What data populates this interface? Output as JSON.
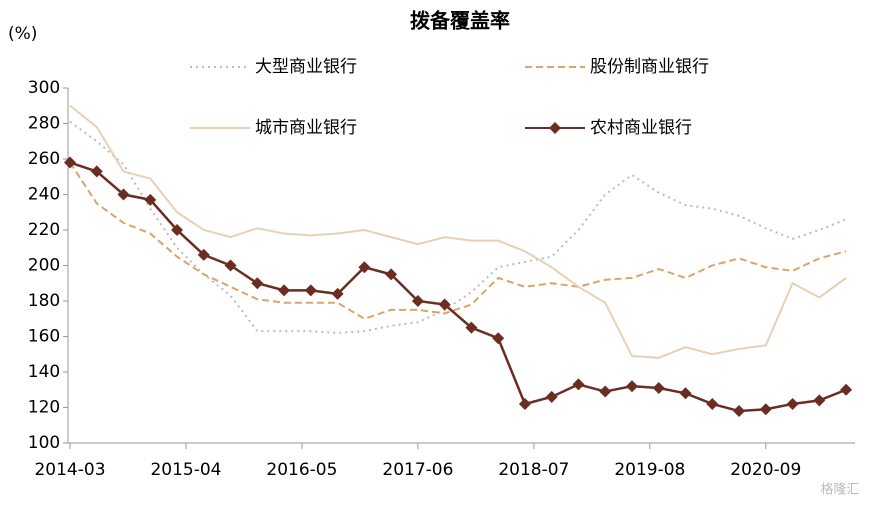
{
  "chart_data": {
    "type": "line",
    "title": "拨备覆盖率",
    "ylabel": "(%)",
    "watermark": "格隆汇",
    "x": [
      "2014-03",
      "2014-06",
      "2014-09",
      "2014-12",
      "2015-03",
      "2015-06",
      "2015-09",
      "2015-12",
      "2016-03",
      "2016-06",
      "2016-09",
      "2016-12",
      "2017-03",
      "2017-06",
      "2017-09",
      "2017-12",
      "2018-03",
      "2018-06",
      "2018-09",
      "2018-12",
      "2019-03",
      "2019-06",
      "2019-09",
      "2019-12",
      "2020-03",
      "2020-06",
      "2020-09",
      "2020-12",
      "2021-03",
      "2021-06"
    ],
    "xlim": [
      "2014-03",
      "2021-07"
    ],
    "xticks": [
      "2014-03",
      "2015-04",
      "2016-05",
      "2017-06",
      "2018-07",
      "2019-08",
      "2020-09"
    ],
    "ylim": [
      100,
      300
    ],
    "yticks": [
      100,
      120,
      140,
      160,
      180,
      200,
      220,
      240,
      260,
      280,
      300
    ],
    "grid": false,
    "series": [
      {
        "name": "大型商业银行",
        "color": "#b9b9c9",
        "dash": "dotted",
        "values": [
          281,
          270,
          257,
          232,
          210,
          195,
          183,
          163,
          163,
          163,
          162,
          163,
          166,
          168,
          175,
          185,
          199,
          202,
          205,
          220,
          240,
          251,
          241,
          234,
          232,
          228,
          221,
          215,
          220,
          226
        ]
      },
      {
        "name": "股份制商业银行",
        "color": "#dba468",
        "dash": "dashed",
        "values": [
          258,
          235,
          224,
          218,
          205,
          195,
          188,
          181,
          179,
          179,
          179,
          170,
          175,
          175,
          173,
          178,
          193,
          188,
          190,
          188,
          192,
          193,
          198,
          193,
          200,
          204,
          199,
          197,
          204,
          208
        ]
      },
      {
        "name": "城市商业银行",
        "color": "#e8d0b2",
        "dash": "solid",
        "values": [
          290,
          278,
          253,
          249,
          230,
          220,
          216,
          221,
          218,
          217,
          218,
          220,
          216,
          212,
          216,
          214,
          214,
          208,
          199,
          188,
          179,
          149,
          148,
          154,
          150,
          153,
          155,
          190,
          182,
          193
        ]
      },
      {
        "name": "农村商业银行",
        "color": "#6b2d22",
        "dash": "solid",
        "marker": "diamond",
        "values": [
          258,
          253,
          240,
          237,
          220,
          206,
          200,
          190,
          186,
          186,
          184,
          199,
          195,
          180,
          178,
          165,
          159,
          122,
          126,
          133,
          129,
          132,
          131,
          128,
          122,
          118,
          119,
          122,
          124,
          130
        ]
      }
    ]
  }
}
